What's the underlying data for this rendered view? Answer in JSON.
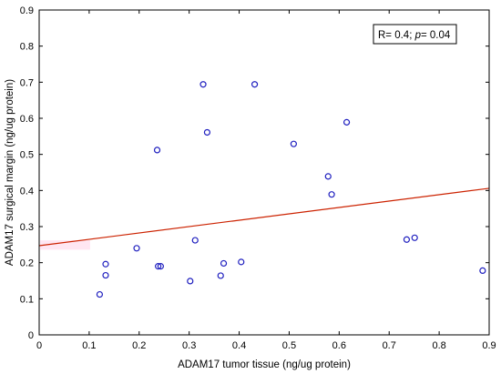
{
  "chart_data": {
    "type": "scatter",
    "title": "",
    "xlabel": "ADAM17 tumor tissue (ng/ug protein)",
    "ylabel": "ADAM17 surgical margin (ng/ug protein)",
    "xlim": [
      0,
      0.9
    ],
    "ylim": [
      0,
      0.9
    ],
    "x_ticks": [
      "0",
      "0.1",
      "0.2",
      "0.3",
      "0.4",
      "0.5",
      "0.6",
      "0.7",
      "0.8",
      "0.9"
    ],
    "y_ticks": [
      "0",
      "0.1",
      "0.2",
      "0.3",
      "0.4",
      "0.5",
      "0.6",
      "0.7",
      "0.8",
      "0.9"
    ],
    "grid": false,
    "annotation": {
      "prefix": "R= 0.4; ",
      "p_symbol": "p",
      "suffix": "= 0.04",
      "placement": "top-right"
    },
    "points": [
      {
        "x": 0.121,
        "y": 0.112
      },
      {
        "x": 0.133,
        "y": 0.196
      },
      {
        "x": 0.133,
        "y": 0.165
      },
      {
        "x": 0.195,
        "y": 0.24
      },
      {
        "x": 0.236,
        "y": 0.512
      },
      {
        "x": 0.238,
        "y": 0.19
      },
      {
        "x": 0.243,
        "y": 0.19
      },
      {
        "x": 0.302,
        "y": 0.149
      },
      {
        "x": 0.312,
        "y": 0.262
      },
      {
        "x": 0.328,
        "y": 0.694
      },
      {
        "x": 0.336,
        "y": 0.561
      },
      {
        "x": 0.363,
        "y": 0.164
      },
      {
        "x": 0.369,
        "y": 0.198
      },
      {
        "x": 0.404,
        "y": 0.202
      },
      {
        "x": 0.431,
        "y": 0.694
      },
      {
        "x": 0.509,
        "y": 0.529
      },
      {
        "x": 0.578,
        "y": 0.439
      },
      {
        "x": 0.585,
        "y": 0.389
      },
      {
        "x": 0.615,
        "y": 0.589
      },
      {
        "x": 0.735,
        "y": 0.264
      },
      {
        "x": 0.751,
        "y": 0.269
      },
      {
        "x": 0.887,
        "y": 0.178
      }
    ],
    "regression": {
      "x0": 0,
      "y0": 0.247,
      "x1": 0.9,
      "y1": 0.406
    },
    "colors": {
      "points": "#1f1fbf",
      "regression": "#cc2200",
      "band": "#ffe6f2",
      "axes": "#000000"
    }
  }
}
